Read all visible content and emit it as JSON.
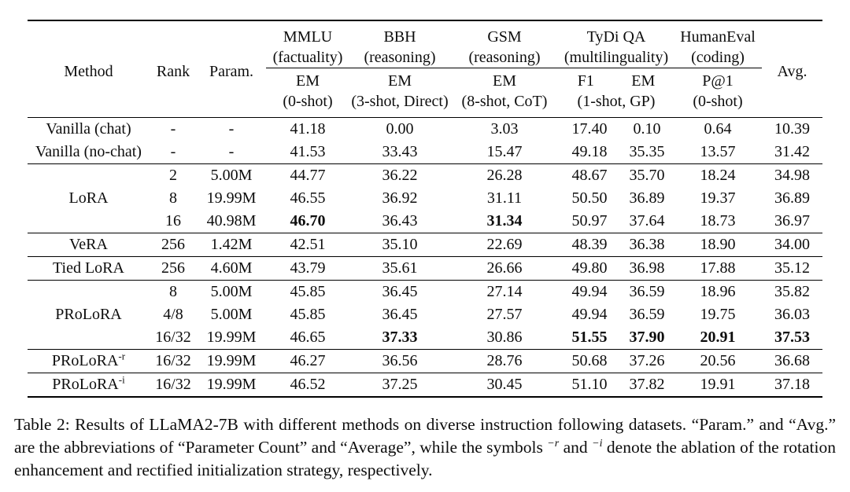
{
  "table": {
    "header": {
      "method": "Method",
      "rank": "Rank",
      "param": "Param.",
      "avg": "Avg.",
      "groups": [
        {
          "name": "MMLU",
          "desc": "(factuality)",
          "span": 1
        },
        {
          "name": "BBH",
          "desc": "(reasoning)",
          "span": 1
        },
        {
          "name": "GSM",
          "desc": "(reasoning)",
          "span": 1
        },
        {
          "name": "TyDi QA",
          "desc": "(multilinguality)",
          "span": 2
        },
        {
          "name": "HumanEval",
          "desc": "(coding)",
          "span": 1
        }
      ],
      "metrics": [
        {
          "line1": [
            "EM"
          ],
          "line2": "(0-shot)",
          "span": 1
        },
        {
          "line1": [
            "EM"
          ],
          "line2": "(3-shot, Direct)",
          "span": 1
        },
        {
          "line1": [
            "EM"
          ],
          "line2": "(8-shot, CoT)",
          "span": 1
        },
        {
          "line1": [
            "F1",
            "EM"
          ],
          "line2": "(1-shot, GP)",
          "span": 2
        },
        {
          "line1": [
            "P@1"
          ],
          "line2": "(0-shot)",
          "span": 1
        }
      ]
    },
    "body_groups": [
      {
        "rows": [
          {
            "method": "Vanilla (chat)",
            "cells": [
              "-",
              "-",
              "41.18",
              "0.00",
              "3.03",
              "17.40",
              "0.10",
              "0.64",
              "10.39"
            ],
            "bold": []
          },
          {
            "method": "Vanilla (no-chat)",
            "cells": [
              "-",
              "-",
              "41.53",
              "33.43",
              "15.47",
              "49.18",
              "35.35",
              "13.57",
              "31.42"
            ],
            "bold": []
          }
        ]
      },
      {
        "method": "LoRA",
        "rows": [
          {
            "cells": [
              "2",
              "5.00M",
              "44.77",
              "36.22",
              "26.28",
              "48.67",
              "35.70",
              "18.24",
              "34.98"
            ],
            "bold": []
          },
          {
            "cells": [
              "8",
              "19.99M",
              "46.55",
              "36.92",
              "31.11",
              "50.50",
              "36.89",
              "19.37",
              "36.89"
            ],
            "bold": []
          },
          {
            "cells": [
              "16",
              "40.98M",
              "46.70",
              "36.43",
              "31.34",
              "50.97",
              "37.64",
              "18.73",
              "36.97"
            ],
            "bold": [
              2,
              4
            ]
          }
        ]
      },
      {
        "method": "VeRA",
        "rows": [
          {
            "cells": [
              "256",
              "1.42M",
              "42.51",
              "35.10",
              "22.69",
              "48.39",
              "36.38",
              "18.90",
              "34.00"
            ],
            "bold": []
          }
        ]
      },
      {
        "method": "Tied LoRA",
        "rows": [
          {
            "cells": [
              "256",
              "4.60M",
              "43.79",
              "35.61",
              "26.66",
              "49.80",
              "36.98",
              "17.88",
              "35.12"
            ],
            "bold": []
          }
        ]
      },
      {
        "method": "PRoLoRA",
        "rows": [
          {
            "cells": [
              "8",
              "5.00M",
              "45.85",
              "36.45",
              "27.14",
              "49.94",
              "36.59",
              "18.96",
              "35.82"
            ],
            "bold": []
          },
          {
            "cells": [
              "4/8",
              "5.00M",
              "45.85",
              "36.45",
              "27.57",
              "49.94",
              "36.59",
              "19.75",
              "36.03"
            ],
            "bold": []
          },
          {
            "cells": [
              "16/32",
              "19.99M",
              "46.65",
              "37.33",
              "30.86",
              "51.55",
              "37.90",
              "20.91",
              "37.53"
            ],
            "bold": [
              3,
              5,
              6,
              7,
              8
            ]
          }
        ]
      },
      {
        "method": "PRoLoRA",
        "method_sup": "-r",
        "rows": [
          {
            "cells": [
              "16/32",
              "19.99M",
              "46.27",
              "36.56",
              "28.76",
              "50.68",
              "37.26",
              "20.56",
              "36.68"
            ],
            "bold": []
          }
        ]
      },
      {
        "method": "PRoLoRA",
        "method_sup": "-i",
        "rows": [
          {
            "cells": [
              "16/32",
              "19.99M",
              "46.52",
              "37.25",
              "30.45",
              "51.10",
              "37.82",
              "19.91",
              "37.18"
            ],
            "bold": []
          }
        ]
      }
    ]
  },
  "caption": {
    "segments": [
      {
        "text": "Table 2: Results of LLaMA2-7B with different methods on diverse instruction following datasets. “Param.” and “Avg.” are the abbreviations of “Parameter Count” and “Average”, while the symbols "
      },
      {
        "text": "−r",
        "sup": true
      },
      {
        "text": " and "
      },
      {
        "text": "−i",
        "sup": true
      },
      {
        "text": " denote the ablation of the rotation enhancement and rectified initialization strategy, respectively."
      }
    ]
  },
  "colors": {
    "text": "#0d0d0d",
    "rule": "#000000",
    "background": "#ffffff"
  }
}
